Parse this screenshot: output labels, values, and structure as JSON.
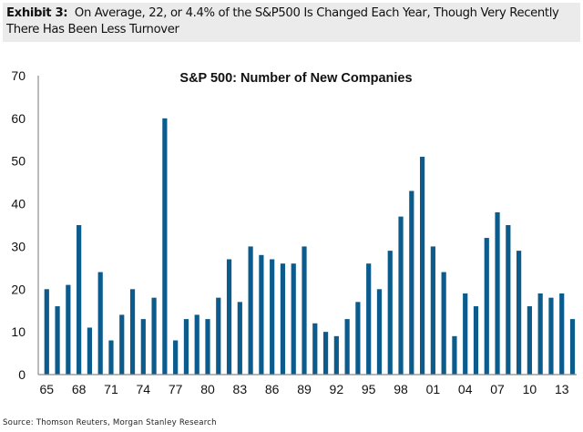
{
  "header": {
    "label": "Exhibit 3:",
    "text": "On Average, 22, or 4.4% of the S&P500 Is Changed Each Year, Though Very Recently There Has Been Less Turnover"
  },
  "source": "Source: Thomson Reuters, Morgan Stanley Research",
  "colors": {
    "bar": "#0b5c8c",
    "axis": "#8c8c8c",
    "header_bg": "#ebebeb"
  },
  "chart_data": {
    "type": "bar",
    "title": "S&P 500: Number of New Companies",
    "xlabel": "",
    "ylabel": "",
    "ylim": [
      0,
      70
    ],
    "yticks": [
      0,
      10,
      20,
      30,
      40,
      50,
      60,
      70
    ],
    "grid": false,
    "legend": "none",
    "categories": [
      "65",
      "66",
      "67",
      "68",
      "69",
      "70",
      "71",
      "72",
      "73",
      "74",
      "75",
      "76",
      "77",
      "78",
      "79",
      "80",
      "81",
      "82",
      "83",
      "84",
      "85",
      "86",
      "87",
      "88",
      "89",
      "90",
      "91",
      "92",
      "93",
      "94",
      "95",
      "96",
      "97",
      "98",
      "99",
      "00",
      "01",
      "02",
      "03",
      "04",
      "05",
      "06",
      "07",
      "08",
      "09",
      "10",
      "11",
      "12",
      "13",
      "14"
    ],
    "xtick_labels": [
      "65",
      "68",
      "71",
      "74",
      "77",
      "80",
      "83",
      "86",
      "89",
      "92",
      "95",
      "98",
      "01",
      "04",
      "07",
      "10",
      "13"
    ],
    "values": [
      20,
      16,
      21,
      35,
      11,
      24,
      8,
      14,
      20,
      13,
      18,
      60,
      8,
      13,
      14,
      13,
      18,
      27,
      17,
      30,
      28,
      27,
      26,
      26,
      30,
      12,
      10,
      9,
      13,
      17,
      26,
      20,
      29,
      37,
      43,
      51,
      30,
      24,
      9,
      19,
      16,
      32,
      38,
      35,
      29,
      16,
      19,
      18,
      19,
      13
    ]
  }
}
